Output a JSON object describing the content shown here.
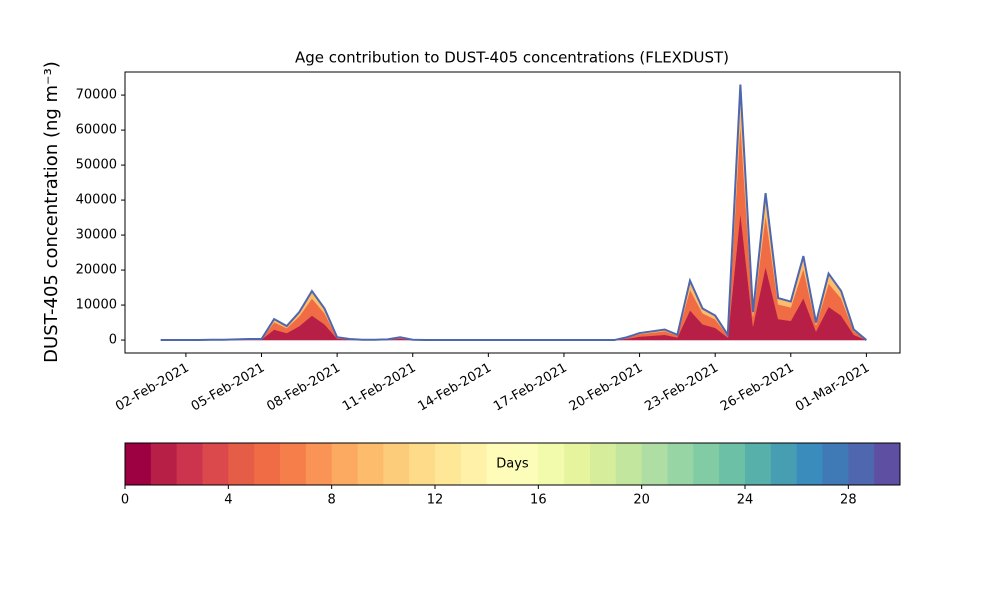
{
  "chart_data": {
    "type": "stacked_area",
    "title": "Age contribution to DUST-405 concentrations (FLEXDUST)",
    "y_label": "DUST-405 concentration (ng m⁻³)",
    "x": [
      "2021-02-01T00:00",
      "2021-02-01T12:00",
      "2021-02-02T00:00",
      "2021-02-02T12:00",
      "2021-02-03T00:00",
      "2021-02-03T12:00",
      "2021-02-04T00:00",
      "2021-02-04T12:00",
      "2021-02-05T00:00",
      "2021-02-05T12:00",
      "2021-02-06T00:00",
      "2021-02-06T12:00",
      "2021-02-07T00:00",
      "2021-02-07T12:00",
      "2021-02-08T00:00",
      "2021-02-08T12:00",
      "2021-02-09T00:00",
      "2021-02-09T12:00",
      "2021-02-10T00:00",
      "2021-02-10T12:00",
      "2021-02-11T00:00",
      "2021-02-11T12:00",
      "2021-02-12T00:00",
      "2021-02-12T12:00",
      "2021-02-13T00:00",
      "2021-02-13T12:00",
      "2021-02-14T00:00",
      "2021-02-14T12:00",
      "2021-02-15T00:00",
      "2021-02-15T12:00",
      "2021-02-16T00:00",
      "2021-02-16T12:00",
      "2021-02-17T00:00",
      "2021-02-17T12:00",
      "2021-02-18T00:00",
      "2021-02-18T12:00",
      "2021-02-19T00:00",
      "2021-02-19T12:00",
      "2021-02-20T00:00",
      "2021-02-20T12:00",
      "2021-02-21T00:00",
      "2021-02-21T12:00",
      "2021-02-22T00:00",
      "2021-02-22T12:00",
      "2021-02-23T00:00",
      "2021-02-23T12:00",
      "2021-02-24T00:00",
      "2021-02-24T12:00",
      "2021-02-25T00:00",
      "2021-02-25T12:00",
      "2021-02-26T00:00",
      "2021-02-26T12:00",
      "2021-02-27T00:00",
      "2021-02-27T12:00",
      "2021-02-28T00:00",
      "2021-02-28T12:00",
      "2021-03-01T00:00"
    ],
    "series": [
      {
        "color": "#b81f47",
        "values": [
          0,
          0,
          0,
          0,
          50,
          50,
          100,
          150,
          150,
          3000,
          2000,
          4000,
          7000,
          4500,
          400,
          150,
          50,
          50,
          100,
          400,
          50,
          0,
          0,
          0,
          0,
          0,
          0,
          0,
          0,
          0,
          0,
          0,
          0,
          0,
          0,
          0,
          0,
          400,
          1000,
          1250,
          1500,
          750,
          8500,
          4500,
          3500,
          750,
          36500,
          4000,
          21000,
          6000,
          5500,
          12000,
          2500,
          9500,
          7000,
          1500,
          0
        ]
      },
      {
        "color": "#ef6c45",
        "values": [
          0,
          0,
          0,
          0,
          35,
          35,
          70,
          105,
          105,
          2100,
          1400,
          2800,
          4900,
          3150,
          280,
          105,
          35,
          35,
          70,
          280,
          35,
          0,
          0,
          0,
          0,
          0,
          0,
          0,
          0,
          0,
          0,
          0,
          0,
          0,
          0,
          0,
          0,
          280,
          700,
          875,
          1050,
          525,
          5950,
          3150,
          2450,
          525,
          25550,
          2800,
          14700,
          4200,
          3850,
          8400,
          1750,
          6650,
          4900,
          1050,
          0
        ]
      },
      {
        "color": "#fdbc6c",
        "values": [
          0,
          0,
          0,
          0,
          15,
          15,
          30,
          45,
          45,
          900,
          600,
          1200,
          2100,
          1350,
          120,
          45,
          15,
          15,
          30,
          120,
          15,
          0,
          0,
          0,
          0,
          0,
          0,
          0,
          0,
          0,
          0,
          0,
          0,
          0,
          0,
          0,
          0,
          120,
          300,
          375,
          450,
          225,
          2550,
          1350,
          1050,
          225,
          10950,
          1200,
          6300,
          1800,
          1650,
          3600,
          750,
          2850,
          2100,
          450,
          0
        ]
      }
    ],
    "outline_color": "#4e67ae",
    "xlim": [
      "2021-01-30T14:00",
      "2021-03-02T08:00"
    ],
    "xticks": [
      {
        "value": "2021-02-02T00:00",
        "label": "02-Feb-2021"
      },
      {
        "value": "2021-02-05T00:00",
        "label": "05-Feb-2021"
      },
      {
        "value": "2021-02-08T00:00",
        "label": "08-Feb-2021"
      },
      {
        "value": "2021-02-11T00:00",
        "label": "11-Feb-2021"
      },
      {
        "value": "2021-02-14T00:00",
        "label": "14-Feb-2021"
      },
      {
        "value": "2021-02-17T00:00",
        "label": "17-Feb-2021"
      },
      {
        "value": "2021-02-20T00:00",
        "label": "20-Feb-2021"
      },
      {
        "value": "2021-02-23T00:00",
        "label": "23-Feb-2021"
      },
      {
        "value": "2021-02-26T00:00",
        "label": "26-Feb-2021"
      },
      {
        "value": "2021-03-01T00:00",
        "label": "01-Mar-2021"
      }
    ],
    "ylim": [
      -3700,
      76600
    ],
    "yticks": [
      0,
      10000,
      20000,
      30000,
      40000,
      50000,
      60000,
      70000
    ],
    "colorbar": {
      "label": "Days",
      "lim": [
        0,
        30
      ],
      "ticks": [
        0,
        4,
        8,
        12,
        16,
        20,
        24,
        28
      ],
      "colors": [
        "#9e0142",
        "#b81f47",
        "#cc334c",
        "#dc494c",
        "#e55c47",
        "#ef6c45",
        "#f67e4b",
        "#f99356",
        "#fca961",
        "#fdbc6c",
        "#fdcc7a",
        "#fedb88",
        "#fee797",
        "#fff1a8",
        "#fffbb8",
        "#fbfdb9",
        "#f2faac",
        "#e6f59d",
        "#d6ee9b",
        "#c3e69f",
        "#aedea3",
        "#98d5a4",
        "#81cba5",
        "#6bc0a5",
        "#58b0aa",
        "#479eb3",
        "#3a8cbc",
        "#3f7ab7",
        "#4e67ae",
        "#5e4fa2"
      ]
    }
  }
}
